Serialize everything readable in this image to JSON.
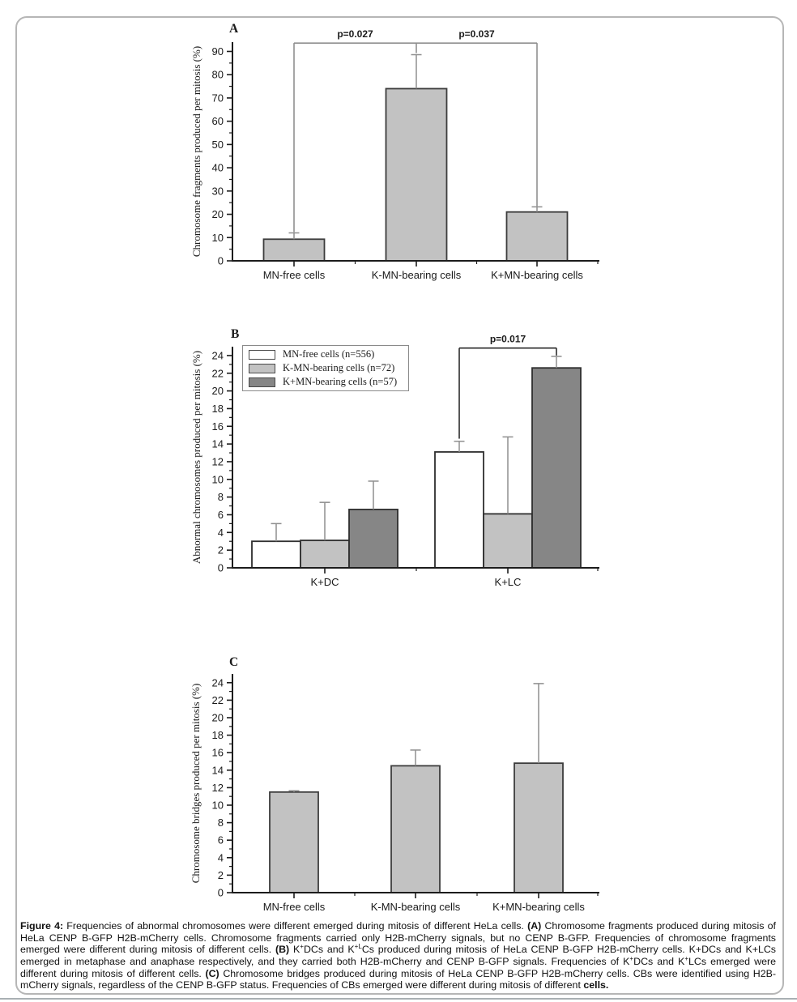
{
  "figure": {
    "caption_segments": [
      {
        "t": "Figure 4:",
        "b": true
      },
      {
        "t": " Frequencies of abnormal chromosomes were different emerged during mitosis of different HeLa cells. "
      },
      {
        "t": "(A)",
        "b": true
      },
      {
        "t": " Chromosome fragments produced during mitosis of HeLa CENP B-GFP H2B-mCherry cells. Chromosome fragments carried only H2B-mCherry signals, but no CENP B-GFP. Frequencies of chromosome fragments emerged were different during mitosis of different cells. "
      },
      {
        "t": "(B)",
        "b": true
      },
      {
        "t": " K"
      },
      {
        "t": "+",
        "sup": true
      },
      {
        "t": "DCs and K"
      },
      {
        "t": "+L",
        "sup": true
      },
      {
        "t": "Cs produced during mitosis of HeLa CENP B-GFP H2B-mCherry cells. K+DCs and K+LCs emerged in metaphase and anaphase respectively, and they carried both H2B-mCherry and CENP B-GFP signals. Frequencies of K"
      },
      {
        "t": "+",
        "sup": true
      },
      {
        "t": "DCs and K"
      },
      {
        "t": "+",
        "sup": true
      },
      {
        "t": "LCs emerged were different during mitosis of different cells. "
      },
      {
        "t": "(C)",
        "b": true
      },
      {
        "t": " Chromosome bridges produced during mitosis of HeLa CENP B-GFP H2B-mCherry cells. CBs were identified using H2B-mCherry signals, regardless of the CENP B-GFP status. Frequencies of CBs emerged were different during mitosis of different "
      },
      {
        "t": "cells.",
        "b": true
      }
    ]
  },
  "chart_data": [
    {
      "type": "bar",
      "panel": "A",
      "ylabel": "Chromosome fragments produced per mitosis (%)",
      "ylim": [
        0,
        94
      ],
      "ytick_step": 10,
      "yminor_step": 5,
      "grid": false,
      "categories": [
        "MN-free cells",
        "K-MN-bearing cells",
        "K+MN-bearing cells"
      ],
      "values": [
        9.3,
        74,
        21
      ],
      "errors": [
        2.7,
        14.6,
        2.2
      ],
      "bar_fill": "#c2c2c2",
      "bar_stroke": "#3c3c3c",
      "error_color": "#8f8f8f",
      "axis_color": "#1c1c1c",
      "significance": {
        "top_value": 93.6,
        "color": "#8f8f8f",
        "drops": [
          {
            "cat": 0,
            "to": 12.3
          },
          {
            "cat": 1,
            "to": 89.3
          },
          {
            "cat": 2,
            "to": 23.4
          }
        ],
        "labels": [
          {
            "text": "p=0.027",
            "between": [
              0,
              1
            ]
          },
          {
            "text": "p=0.037",
            "between": [
              1,
              2
            ]
          }
        ]
      }
    },
    {
      "type": "bar",
      "panel": "B",
      "ylabel": "Abnormal chromosomes produced per mitosis (%)",
      "ylim": [
        0,
        25
      ],
      "ytick_step": 2,
      "yminor_step": 1,
      "grid": false,
      "legend_position": "top-left",
      "categories": [
        "K+DC",
        "K+LC"
      ],
      "series": [
        {
          "name": "MN-free cells (n=556)",
          "fill": "#ffffff",
          "values": [
            3.0,
            13.1
          ],
          "errors": [
            2.0,
            1.2
          ]
        },
        {
          "name": "K-MN-bearing cells (n=72)",
          "fill": "#c2c2c2",
          "values": [
            3.1,
            6.1
          ],
          "errors": [
            4.3,
            8.7
          ]
        },
        {
          "name": "K+MN-bearing cells (n=57)",
          "fill": "#868686",
          "values": [
            6.6,
            22.6
          ],
          "errors": [
            3.2,
            1.3
          ]
        }
      ],
      "bar_stroke": "#2e2e2e",
      "error_color": "#8f8f8f",
      "axis_color": "#1c1c1c",
      "significance": {
        "top_value": 24.85,
        "color": "#2b2b2b",
        "drops": [
          {
            "cat": 1,
            "series": 0,
            "to": 14.6
          },
          {
            "cat": 1,
            "series": 2,
            "to": 24.0
          }
        ],
        "labels": [
          {
            "text": "p=0.017",
            "between": [
              0,
              1
            ]
          }
        ]
      }
    },
    {
      "type": "bar",
      "panel": "C",
      "ylabel": "Chromosome bridges produced per mitosis (%)",
      "ylim": [
        0,
        25
      ],
      "ytick_step": 2,
      "yminor_step": 1,
      "grid": false,
      "categories": [
        "MN-free cells",
        "K-MN-bearing cells",
        "K+MN-bearing cells"
      ],
      "values": [
        11.5,
        14.5,
        14.8
      ],
      "errors": [
        0.15,
        1.8,
        9.1
      ],
      "bar_fill": "#c2c2c2",
      "bar_stroke": "#3c3c3c",
      "error_color": "#8f8f8f",
      "axis_color": "#1c1c1c",
      "significance": null
    }
  ]
}
